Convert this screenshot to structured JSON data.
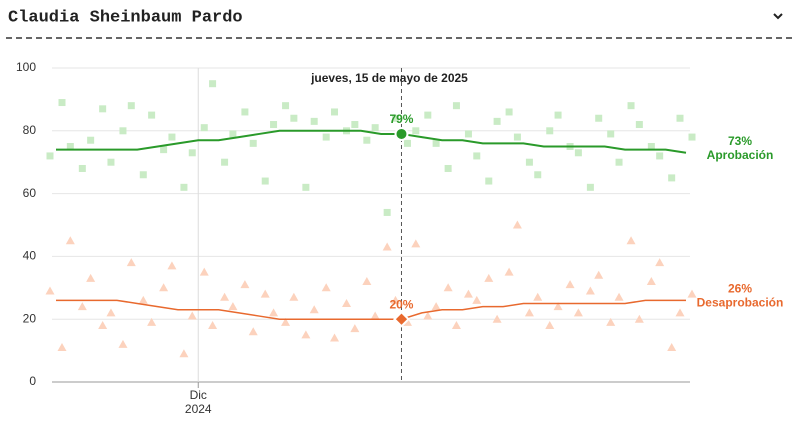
{
  "header": {
    "title": "Claudia Sheinbaum Pardo"
  },
  "chart_data": {
    "type": "line",
    "categories": [
      null,
      null,
      null,
      null,
      null,
      null,
      null,
      "Dic\n2024",
      null,
      null,
      null,
      null,
      null,
      null,
      null,
      null,
      null,
      null,
      null,
      null,
      null,
      null,
      null,
      null,
      null,
      null,
      null,
      null,
      null,
      null,
      null,
      null
    ],
    "ylim": [
      0,
      100
    ],
    "yticks": [
      0,
      20,
      40,
      60,
      80,
      100
    ],
    "grid": true,
    "hover": {
      "index": 17,
      "label": "jueves, 15 de mayo de 2025",
      "value_labels": [
        "79%",
        "20%"
      ]
    },
    "series": [
      {
        "name": "Aprobación",
        "color": "#2a9a2a",
        "point_color": "#c9ebc5",
        "end_label": "73%",
        "values": [
          74,
          74,
          74,
          74,
          74,
          75,
          76,
          77,
          77,
          78,
          79,
          80,
          80,
          80,
          80,
          80,
          79,
          79,
          78,
          77,
          77,
          76,
          76,
          76,
          75,
          75,
          75,
          75,
          74,
          74,
          74,
          73
        ],
        "polls": [
          [
            72,
            89
          ],
          [
            75,
            68
          ],
          [
            77,
            87
          ],
          [
            70,
            80
          ],
          [
            88,
            66
          ],
          [
            85,
            74
          ],
          [
            78,
            62
          ],
          [
            73,
            81
          ],
          [
            95,
            70
          ],
          [
            79,
            86
          ],
          [
            76,
            64
          ],
          [
            82,
            88
          ],
          [
            84,
            62
          ],
          [
            83,
            78
          ],
          [
            86,
            80
          ],
          [
            82,
            77
          ],
          [
            81,
            54
          ],
          [
            84,
            76
          ],
          [
            80,
            85
          ],
          [
            76,
            68
          ],
          [
            88,
            79
          ],
          [
            72,
            64
          ],
          [
            83,
            86
          ],
          [
            78,
            70
          ],
          [
            66,
            80
          ],
          [
            85,
            75
          ],
          [
            73,
            62
          ],
          [
            84,
            79
          ],
          [
            70,
            88
          ],
          [
            82,
            75
          ],
          [
            72,
            65
          ],
          [
            84,
            78
          ]
        ]
      },
      {
        "name": "Desaprobación",
        "color": "#e8692e",
        "point_color": "#fcd2bd",
        "end_label": "26%",
        "values": [
          26,
          26,
          26,
          26,
          25,
          24,
          23,
          23,
          23,
          22,
          21,
          20,
          20,
          20,
          20,
          20,
          20,
          20,
          22,
          23,
          23,
          24,
          24,
          25,
          25,
          25,
          25,
          25,
          25,
          26,
          26,
          26
        ],
        "polls": [
          [
            29,
            11
          ],
          [
            45,
            24
          ],
          [
            33,
            18
          ],
          [
            22,
            12
          ],
          [
            38,
            26
          ],
          [
            19,
            30
          ],
          [
            37,
            9
          ],
          [
            21,
            35
          ],
          [
            18,
            27
          ],
          [
            24,
            31
          ],
          [
            16,
            28
          ],
          [
            22,
            19
          ],
          [
            27,
            15
          ],
          [
            23,
            30
          ],
          [
            14,
            25
          ],
          [
            17,
            32
          ],
          [
            21,
            43
          ],
          [
            26,
            19
          ],
          [
            44,
            21
          ],
          [
            24,
            30
          ],
          [
            18,
            28
          ],
          [
            26,
            33
          ],
          [
            20,
            35
          ],
          [
            50,
            22
          ],
          [
            27,
            18
          ],
          [
            24,
            31
          ],
          [
            22,
            29
          ],
          [
            34,
            19
          ],
          [
            27,
            45
          ],
          [
            20,
            32
          ],
          [
            38,
            11
          ],
          [
            22,
            28
          ]
        ]
      }
    ]
  }
}
